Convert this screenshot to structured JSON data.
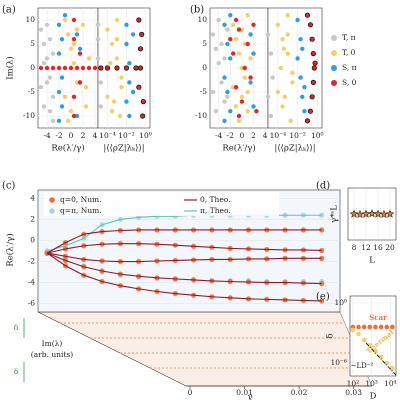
{
  "chart_data": [
    {
      "type": "scatter",
      "panel_label": "(a)",
      "xlabel": "Re(λ′/γ)",
      "ylabel": "Im(λ)",
      "xlim": [
        -5.5,
        4.5
      ],
      "xticks": [
        -4,
        -2,
        0,
        2,
        4
      ],
      "ylim": [
        -12.5,
        12.5
      ],
      "yticks": [
        -10,
        -5,
        0,
        5,
        10
      ],
      "grid": true,
      "series": [
        {
          "name": "T, π",
          "color": "#c8c8c8",
          "x": [
            -5,
            -4.5,
            -4,
            -3.5,
            -3,
            -4.5,
            -4,
            -3.5,
            -5,
            -3,
            -4,
            -3.5,
            -4.5,
            -3
          ],
          "y": [
            8,
            5,
            2,
            -2,
            -6,
            -8,
            9,
            6,
            -4,
            3,
            -3,
            -9,
            1,
            -11
          ]
        },
        {
          "name": "T, 0",
          "color": "#f5cd6a",
          "x": [
            -1,
            -0.5,
            0,
            0.5,
            1,
            -1,
            0,
            1,
            -0.5,
            0.5,
            2,
            2.5,
            3,
            2.5
          ],
          "y": [
            10,
            7,
            4,
            1,
            -3,
            -6,
            -9,
            8,
            -11,
            5,
            9,
            -4,
            2,
            -8
          ]
        },
        {
          "name": "S, π",
          "color": "#2f9ee0",
          "x": [
            -2,
            -1.5,
            -2,
            -1.5,
            -2,
            -1.5,
            -2,
            -1,
            1,
            1.5,
            1,
            1.5
          ],
          "y": [
            9,
            6,
            3,
            -2,
            -5,
            -8,
            -11,
            11,
            7,
            -3,
            -10,
            4
          ]
        },
        {
          "name": "S, 0",
          "color": "#e0262b",
          "x": [
            -5,
            -4,
            -3,
            -2,
            -1,
            0,
            1,
            2,
            3,
            4,
            0.5,
            0.5,
            0.5,
            0.5,
            1.5,
            1.5
          ],
          "y": [
            0,
            0,
            0,
            0,
            0,
            0,
            0,
            0,
            0,
            0,
            6,
            -6,
            10,
            -10,
            3,
            -3
          ]
        }
      ]
    },
    {
      "type": "scatter",
      "xlabel": "|⟨⟨ρZ|λₖ⟩⟩|",
      "xlog": true,
      "xlim": [
        1e-05,
        3
      ],
      "xticks": [
        {
          "value": 0.0001,
          "label": "10⁻⁴"
        },
        {
          "value": 0.01,
          "label": "10⁻²"
        },
        {
          "value": 1,
          "label": "10⁰"
        }
      ],
      "ylim": [
        -12.5,
        12.5
      ],
      "grid": true,
      "series": [
        {
          "color": "#c8c8c8",
          "x": [
            1e-05,
            2e-05,
            1e-05,
            2e-05,
            1e-05
          ],
          "y": [
            6,
            -3,
            2,
            -8,
            9
          ]
        },
        {
          "color": "#f5cd6a",
          "x": [
            0.0001,
            0.0003,
            0.001,
            0.003,
            0.0001,
            0.0003,
            0.001,
            0.003,
            0.0002,
            0.0005,
            0.001,
            0.002
          ],
          "y": [
            8,
            5,
            2,
            -2,
            -6,
            -9,
            6,
            -4,
            1,
            -7,
            10,
            -10
          ]
        },
        {
          "color": "#2f9ee0",
          "x": [
            0.01,
            0.01,
            0.02,
            0.02,
            0.01,
            0.02,
            0.05,
            0.05
          ],
          "y": [
            9,
            5,
            1,
            -3,
            -7,
            -10,
            7,
            -5
          ]
        },
        {
          "color": "#e0262b",
          "edge_color": "#111111",
          "x": [
            2e-05,
            0.0001,
            0.001,
            0.01,
            0.1,
            0.3,
            0.2,
            0.4,
            0.3,
            0.2,
            0.6,
            0.5
          ],
          "y": [
            0,
            0,
            0,
            0,
            0,
            0,
            10,
            7,
            4,
            -4,
            -7,
            -10
          ]
        }
      ]
    },
    {
      "type": "scatter",
      "panel_label": "(b)",
      "xlabel": "Re(λ′/γ)",
      "xlim": [
        -5.5,
        4.5
      ],
      "xticks": [
        -4,
        -2,
        0,
        2,
        4
      ],
      "ylim": [
        -12.5,
        12.5
      ],
      "yticks": [
        -10,
        -5,
        0,
        5,
        10
      ],
      "grid": true,
      "series": [
        {
          "color": "#c8c8c8",
          "x": [
            -5,
            -4.5,
            -4,
            -3.5,
            -3,
            -4.5,
            -4,
            -3.5,
            -5,
            -3,
            -2.5,
            -2.5
          ],
          "y": [
            7,
            4,
            1,
            -3,
            -7,
            -9,
            10,
            5,
            -5,
            2,
            8,
            -6
          ]
        },
        {
          "color": "#f5cd6a",
          "x": [
            -1.5,
            -1,
            -0.5,
            0,
            0.5,
            1,
            -1,
            0,
            1,
            -0.5,
            0.5,
            1.5,
            -1.5,
            0,
            1
          ],
          "y": [
            9,
            6,
            3,
            0,
            -2,
            -5,
            -8,
            8,
            -9,
            -11,
            5,
            2,
            -4,
            -6,
            11
          ]
        },
        {
          "color": "#2f9ee0",
          "x": [
            -3,
            -2.5,
            -2,
            -3,
            -2.5,
            -2,
            1.5,
            2,
            1.5,
            2,
            -2,
            -3
          ],
          "y": [
            9,
            5,
            2,
            -2,
            -5,
            -9,
            7,
            3,
            -3,
            -8,
            11,
            -11
          ]
        },
        {
          "color": "#e0262b",
          "x": [
            -2,
            -1.5,
            -1,
            -0.5,
            0,
            1,
            1.5,
            -1,
            -0.5,
            0.5,
            2,
            2.5
          ],
          "y": [
            6,
            3,
            -4,
            8,
            -7,
            5,
            -2,
            10,
            -10,
            0,
            9,
            -9
          ]
        }
      ]
    },
    {
      "type": "scatter",
      "xlabel": "|⟨⟨ρZ|λₖ⟩⟩|",
      "xlog": true,
      "xlim": [
        1e-05,
        3
      ],
      "xticks": [
        {
          "value": 0.0001,
          "label": "10⁻⁴"
        },
        {
          "value": 0.01,
          "label": "10⁻²"
        },
        {
          "value": 1,
          "label": "10⁰"
        }
      ],
      "ylim": [
        -12.5,
        12.5
      ],
      "grid": true,
      "series": [
        {
          "color": "#c8c8c8",
          "x": [
            1e-05,
            2e-05,
            3e-05,
            1e-05,
            2e-05
          ],
          "y": [
            7,
            3,
            -2,
            -6,
            -10
          ]
        },
        {
          "color": "#f5cd6a",
          "x": [
            0.0001,
            0.0003,
            0.001,
            0.003,
            0.0001,
            0.0003,
            0.001,
            0.003,
            0.0002,
            0.0005,
            0.001,
            0.002,
            0.0004
          ],
          "y": [
            9,
            6,
            3,
            -1,
            -5,
            -8,
            7,
            -3,
            0,
            -6,
            11,
            -11,
            4
          ]
        },
        {
          "color": "#2f9ee0",
          "x": [
            0.01,
            0.02,
            0.01,
            0.02,
            0.03,
            0.05,
            0.03,
            0.05
          ],
          "y": [
            10,
            6,
            2,
            -2,
            -6,
            -9,
            4,
            -4
          ]
        },
        {
          "color": "#e0262b",
          "edge_color": "#111111",
          "x": [
            0.1,
            0.2,
            0.3,
            0.4,
            0.5,
            0.4,
            0.3,
            0.2,
            0.1,
            0.6
          ],
          "y": [
            11,
            9,
            6,
            3,
            0,
            -3,
            -6,
            -9,
            -11,
            1
          ]
        }
      ]
    },
    {
      "type": "line",
      "panel_label": "(c)",
      "xlabel": "γ",
      "ylabel": "Re(λ′/γ)",
      "annotations": [
        "Im(λ)",
        "(arb. units)",
        "δ",
        "δ"
      ],
      "xlim": [
        0,
        0.033
      ],
      "xticks": [
        0,
        0.01,
        0.02,
        0.03
      ],
      "ylim": [
        -6.8,
        4.8
      ],
      "yticks": [
        -6,
        -4,
        -2,
        0,
        2,
        4
      ],
      "grid": true,
      "x": [
        0.001,
        0.003,
        0.005,
        0.007,
        0.009,
        0.011,
        0.013,
        0.015,
        0.017,
        0.019,
        0.021,
        0.023,
        0.025,
        0.027,
        0.029,
        0.031
      ],
      "series": [
        {
          "name": "q=π, Num.",
          "color": "#a7d3ea",
          "style": "dots",
          "branches": [
            [
              -1.0,
              -0.5,
              0.2,
              1.5,
              2.0,
              2.2,
              2.3,
              2.3,
              2.4,
              2.4,
              2.4,
              2.4,
              2.4,
              2.4,
              2.4,
              2.4
            ],
            [
              -1.0,
              -1.6,
              -2.4,
              -3.0,
              -3.3,
              -3.5,
              -3.6,
              -3.7,
              -3.7,
              -3.8,
              -3.8,
              -3.8,
              -3.9,
              -3.9,
              -3.9,
              -3.9
            ]
          ]
        },
        {
          "name": "q=0, Num.",
          "color": "#f26b3a",
          "style": "dots",
          "branches": [
            [
              -1.2,
              -0.2,
              0.6,
              0.85,
              0.95,
              1.0,
              1.0,
              1.0,
              1.0,
              1.0,
              1.0,
              1.0,
              1.0,
              1.0,
              1.0,
              1.0
            ],
            [
              -1.2,
              -0.8,
              -0.5,
              -0.35,
              -0.3,
              -0.3,
              -0.35,
              -0.45,
              -0.55,
              -0.65,
              -0.75,
              -0.8,
              -0.85,
              -0.9,
              -0.9,
              -0.95
            ],
            [
              -1.2,
              -1.5,
              -1.8,
              -1.95,
              -2.0,
              -2.0,
              -1.95,
              -1.9,
              -1.85,
              -1.8,
              -1.8,
              -1.75,
              -1.75,
              -1.7,
              -1.7,
              -1.7
            ],
            [
              -1.2,
              -1.9,
              -2.5,
              -2.9,
              -3.2,
              -3.4,
              -3.55,
              -3.65,
              -3.75,
              -3.85,
              -3.9,
              -3.95,
              -4.0,
              -4.0,
              -4.05,
              -4.1
            ],
            [
              -1.2,
              -2.4,
              -3.3,
              -3.9,
              -4.3,
              -4.6,
              -4.85,
              -5.05,
              -5.2,
              -5.35,
              -5.45,
              -5.55,
              -5.6,
              -5.65,
              -5.7,
              -5.75
            ]
          ]
        },
        {
          "name": "π, Theo.",
          "color": "#5fc4b5",
          "style": "line",
          "branches": [
            [
              -1.0,
              -0.5,
              0.2,
              1.5,
              2.0,
              2.2,
              2.3,
              2.3,
              2.4,
              2.4,
              2.4,
              2.4,
              2.4,
              2.4,
              2.4,
              2.4
            ]
          ]
        },
        {
          "name": "0, Theo.",
          "color": "#8b1a2b",
          "style": "line",
          "branches": [
            [
              -1.2,
              -0.2,
              0.6,
              0.85,
              0.95,
              1.0,
              1.0,
              1.0,
              1.0,
              1.0,
              1.0,
              1.0,
              1.0,
              1.0,
              1.0,
              1.0
            ],
            [
              -1.2,
              -0.8,
              -0.5,
              -0.35,
              -0.3,
              -0.3,
              -0.35,
              -0.45,
              -0.55,
              -0.65,
              -0.75,
              -0.8,
              -0.85,
              -0.9,
              -0.9,
              -0.95
            ],
            [
              -1.2,
              -1.5,
              -1.8,
              -1.95,
              -2.0,
              -2.0,
              -1.95,
              -1.9,
              -1.85,
              -1.8,
              -1.8,
              -1.75,
              -1.75,
              -1.7,
              -1.7,
              -1.7
            ],
            [
              -1.2,
              -1.9,
              -2.5,
              -2.9,
              -3.2,
              -3.4,
              -3.55,
              -3.65,
              -3.75,
              -3.85,
              -3.9,
              -3.95,
              -4.0,
              -4.0,
              -4.05,
              -4.1
            ],
            [
              -1.2,
              -2.4,
              -3.3,
              -3.9,
              -4.3,
              -4.6,
              -4.85,
              -5.05,
              -5.2,
              -5.35,
              -5.45,
              -5.55,
              -5.6,
              -5.65,
              -5.7,
              -5.75
            ]
          ]
        }
      ]
    },
    {
      "type": "scatter",
      "panel_label": "(d)",
      "xlabel": "L",
      "ylabel": "γ*ˢL",
      "marker": "star",
      "xlim": [
        6,
        22
      ],
      "xticks": [
        8,
        12,
        16,
        20
      ],
      "ylim": [
        0,
        3.2
      ],
      "grid": true,
      "series": [
        {
          "color": "#d9864a",
          "edge_color": "#5a3a20",
          "x": [
            8,
            10,
            12,
            14,
            16,
            18,
            20
          ],
          "y": [
            1.6,
            1.58,
            1.6,
            1.62,
            1.6,
            1.58,
            1.6
          ]
        }
      ]
    },
    {
      "type": "line",
      "panel_label": "(e)",
      "xlabel": "D",
      "ylabel": "δ",
      "xlog": true,
      "ylog": true,
      "xlim": [
        70,
        20000
      ],
      "xticks": [
        {
          "value": 100,
          "label": "10²"
        },
        {
          "value": 1000,
          "label": "10³"
        },
        {
          "value": 10000,
          "label": "10⁴"
        }
      ],
      "ylim": [
        5e-08,
        5
      ],
      "yticks": [
        {
          "value": 1,
          "label": "10⁰"
        },
        {
          "value": 1e-06,
          "label": "10⁻⁶"
        }
      ],
      "grid": true,
      "series": [
        {
          "name": "Scar",
          "color": "#f26b3a",
          "style": "dots",
          "x": [
            100,
            200,
            400,
            800,
            1600,
            3200,
            6400,
            12800
          ],
          "y": [
            0.004,
            0.004,
            0.004,
            0.004,
            0.004,
            0.004,
            0.004,
            0.004
          ]
        },
        {
          "name": "Thermal",
          "color": "#f5cd6a",
          "style": "dots",
          "x": [
            100,
            200,
            400,
            800,
            1600,
            3200,
            6400,
            12800
          ],
          "y": [
            0.002,
            0.0008,
            0.0002,
            6e-05,
            1.5e-05,
            4e-06,
            1e-06,
            3e-07
          ]
        },
        {
          "name": "~LD⁻²",
          "color": "#111111",
          "style": "dashdot",
          "x": [
            500,
            20000
          ],
          "y": [
            0.0001,
            6.25e-08
          ]
        }
      ]
    }
  ]
}
